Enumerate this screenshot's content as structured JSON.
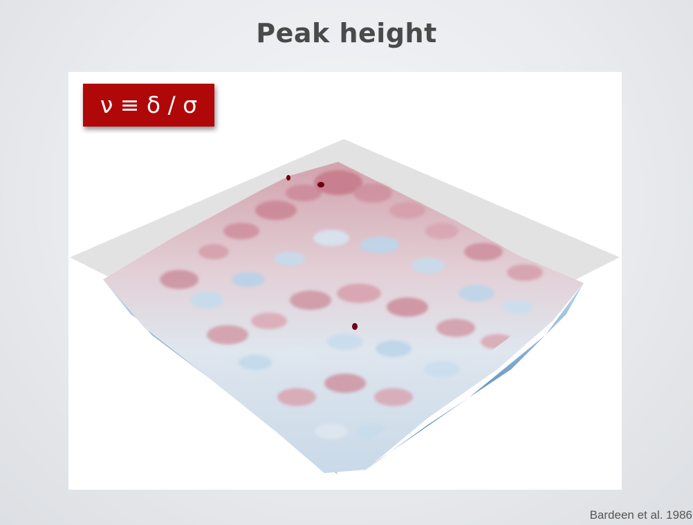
{
  "slide": {
    "title": "Peak height",
    "formula": "ν ≡ δ / σ",
    "citation": "Bardeen et al. 1986"
  },
  "figure": {
    "description_colors": {
      "high": "#8a1020",
      "mid_high": "#d5a0aa",
      "mid": "#eeeef2",
      "mid_low": "#a9cbe3",
      "low": "#1d5e9a",
      "plane": "#dddddd",
      "peak_marker": "#7a0010"
    }
  }
}
